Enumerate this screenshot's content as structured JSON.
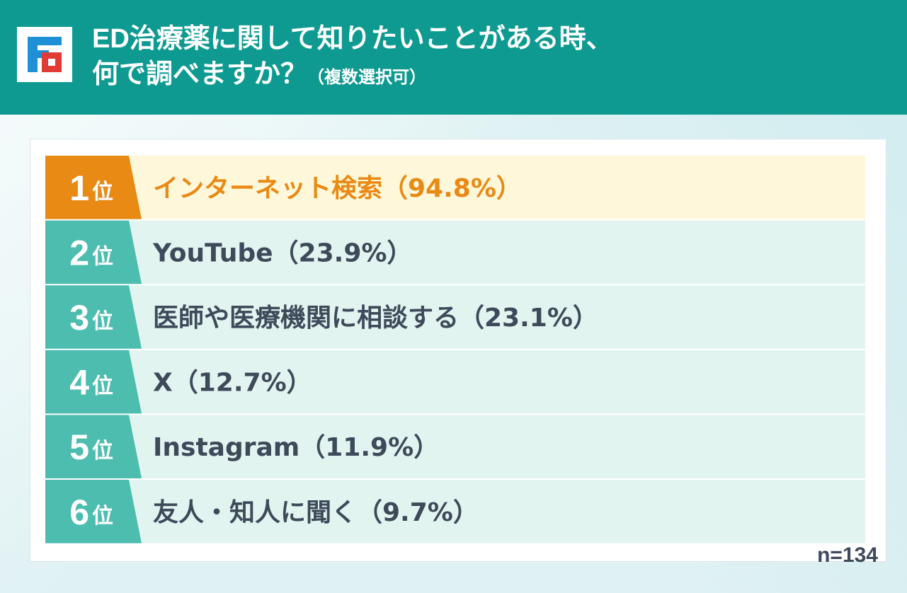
{
  "header": {
    "title_line1": "ED治療薬に関して知りたいことがある時、",
    "title_line2": "何で調べますか？",
    "title_sub": "（複数選択可）"
  },
  "colors": {
    "header_bg": "#0e9a91",
    "rank_top": "#e88a14",
    "rank_other": "#4dbdaf",
    "row_top_bg": "#fff7da",
    "row_other_bg": "#e2f4f0",
    "label_top": "#e88a14",
    "label_other": "#3e4a5a"
  },
  "chart_data": {
    "type": "table",
    "rank_suffix": "位",
    "rows": [
      {
        "rank": "1",
        "label": "インターネット検索（94.8%）",
        "item": "インターネット検索",
        "value": 94.8
      },
      {
        "rank": "2",
        "label": "YouTube（23.9%）",
        "item": "YouTube",
        "value": 23.9
      },
      {
        "rank": "3",
        "label": "医師や医療機関に相談する（23.1%）",
        "item": "医師や医療機関に相談する",
        "value": 23.1
      },
      {
        "rank": "4",
        "label": "X（12.7%）",
        "item": "X",
        "value": 12.7
      },
      {
        "rank": "5",
        "label": "Instagram（11.9%）",
        "item": "Instagram",
        "value": 11.9
      },
      {
        "rank": "6",
        "label": "友人・知人に聞く（9.7%）",
        "item": "友人・知人に聞く",
        "value": 9.7
      }
    ],
    "note": "n=134"
  }
}
